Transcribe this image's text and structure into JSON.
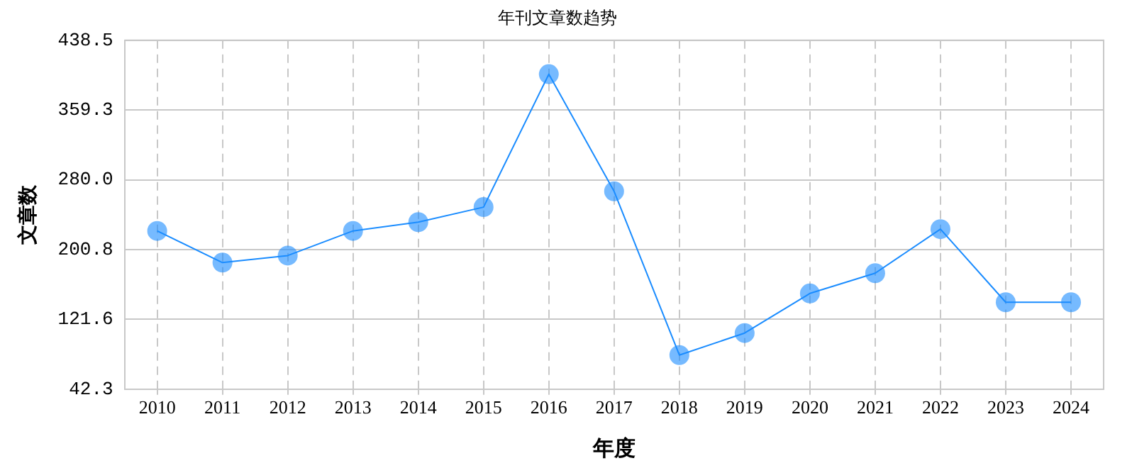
{
  "chart_data": {
    "type": "line",
    "title": "年刊文章数趋势",
    "xlabel": "年度",
    "ylabel": "文章数",
    "categories": [
      "2010",
      "2011",
      "2012",
      "2013",
      "2014",
      "2015",
      "2016",
      "2017",
      "2018",
      "2019",
      "2020",
      "2021",
      "2022",
      "2023",
      "2024"
    ],
    "series": [
      {
        "color": "#1a8cff",
        "values": [
          222,
          186,
          194,
          222,
          232,
          249,
          400,
          267,
          81,
          106,
          151,
          174,
          224,
          141,
          141
        ]
      }
    ],
    "ylim": [
      42.3,
      438.5
    ],
    "yticks": [
      {
        "value": 42.3,
        "label": "42.3"
      },
      {
        "value": 121.6,
        "label": "121.6"
      },
      {
        "value": 200.8,
        "label": "200.8"
      },
      {
        "value": 280.0,
        "label": "280.0"
      },
      {
        "value": 359.3,
        "label": "359.3"
      },
      {
        "value": 438.5,
        "label": "438.5"
      }
    ],
    "grid": true,
    "legend": false,
    "marker": "circle",
    "line_style": "solid"
  }
}
